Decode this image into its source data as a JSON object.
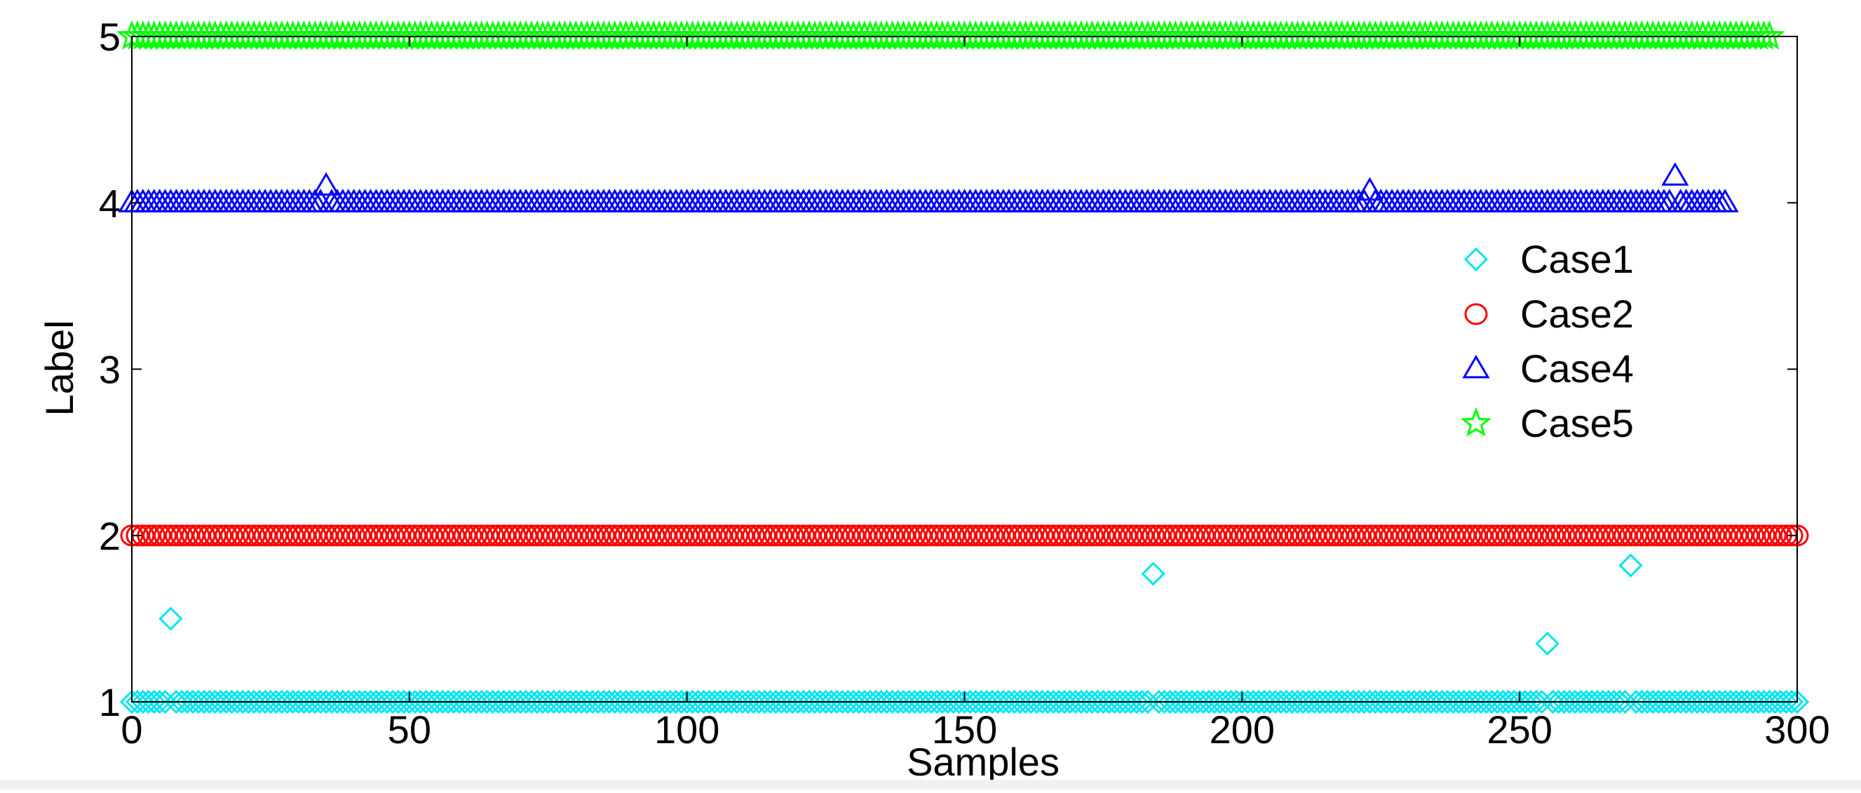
{
  "chart_data": {
    "type": "scatter",
    "xlabel": "Samples",
    "ylabel": "Label",
    "xlim": [
      0,
      300
    ],
    "ylim": [
      1,
      5
    ],
    "xticks": [
      0,
      50,
      100,
      150,
      200,
      250,
      300
    ],
    "yticks": [
      1,
      2,
      3,
      4,
      5
    ],
    "xtick_labels": [
      "0",
      "50",
      "100",
      "150",
      "200",
      "250",
      "300"
    ],
    "ytick_labels": [
      "1",
      "2",
      "3",
      "4",
      "5"
    ],
    "grid": false,
    "legend_position": "right",
    "series": [
      {
        "name": "Case1",
        "marker": "diamond",
        "color": "#00e5ee",
        "x_range": [
          0,
          300
        ],
        "base_value": 1,
        "outliers": [
          {
            "x": 7,
            "y": 1.5
          },
          {
            "x": 184,
            "y": 1.77
          },
          {
            "x": 255,
            "y": 1.35
          },
          {
            "x": 270,
            "y": 1.82
          }
        ]
      },
      {
        "name": "Case2",
        "marker": "circle",
        "color": "#ff0000",
        "x_range": [
          0,
          300
        ],
        "base_value": 2,
        "outliers": []
      },
      {
        "name": "Case4",
        "marker": "triangle",
        "color": "#0000ff",
        "x_range": [
          0,
          287
        ],
        "base_value": 4,
        "outliers": [
          {
            "x": 35,
            "y": 4.1
          },
          {
            "x": 223,
            "y": 4.07
          },
          {
            "x": 278,
            "y": 4.16
          }
        ]
      },
      {
        "name": "Case5",
        "marker": "star",
        "color": "#00ff00",
        "x_range": [
          0,
          295
        ],
        "base_value": 5,
        "outliers": []
      }
    ]
  }
}
